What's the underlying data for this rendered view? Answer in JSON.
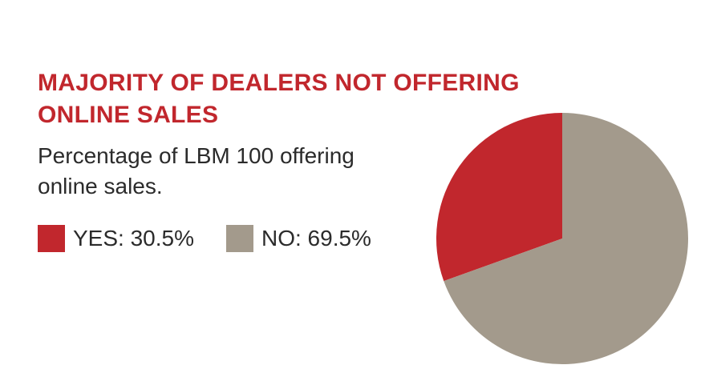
{
  "chart_data": {
    "type": "pie",
    "title": "MAJORITY OF DEALERS NOT OFFERING ONLINE SALES",
    "subtitle": "Percentage of LBM 100 offering online sales.",
    "categories": [
      "YES: 30.5%",
      "NO: 69.5%"
    ],
    "values": [
      30.5,
      69.5
    ],
    "colors": [
      "#c1272d",
      "#a39a8c"
    ]
  }
}
